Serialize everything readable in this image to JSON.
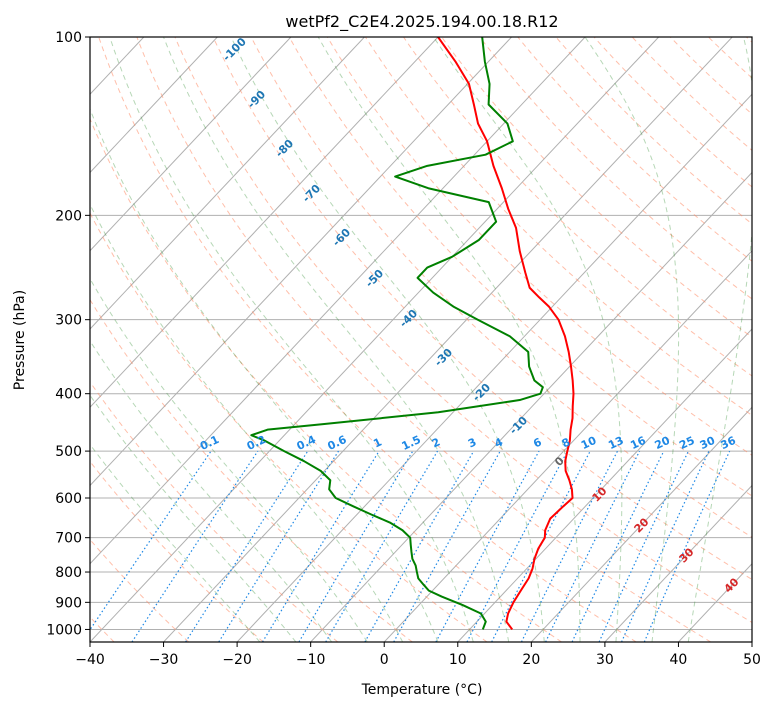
{
  "chart_data": {
    "type": "skew-t",
    "title": "wetPf2_C2E4.2025.194.00.18.R12",
    "xlabel": "Temperature (°C)",
    "ylabel": "Pressure (hPa)",
    "xlim": [
      -40,
      50
    ],
    "ylim": [
      1050,
      100
    ],
    "x_ticks": [
      -40,
      -30,
      -20,
      -10,
      0,
      10,
      20,
      30,
      40,
      50
    ],
    "y_ticks": [
      1000,
      900,
      800,
      700,
      600,
      500,
      400,
      300,
      200,
      100
    ],
    "series": [
      {
        "color": "#ff0000",
        "points": [
          [
            1000,
            15.8
          ],
          [
            970,
            14.0
          ],
          [
            940,
            13.2
          ],
          [
            900,
            12.5
          ],
          [
            860,
            12.0
          ],
          [
            820,
            11.5
          ],
          [
            790,
            10.8
          ],
          [
            760,
            9.8
          ],
          [
            730,
            9.0
          ],
          [
            700,
            8.5
          ],
          [
            680,
            7.6
          ],
          [
            650,
            6.8
          ],
          [
            620,
            7.0
          ],
          [
            600,
            7.2
          ],
          [
            580,
            6.0
          ],
          [
            560,
            4.5
          ],
          [
            540,
            2.8
          ],
          [
            520,
            1.5
          ],
          [
            500,
            0.5
          ],
          [
            480,
            -0.5
          ],
          [
            460,
            -1.8
          ],
          [
            440,
            -3.0
          ],
          [
            420,
            -4.5
          ],
          [
            400,
            -6.0
          ],
          [
            380,
            -7.8
          ],
          [
            360,
            -9.8
          ],
          [
            340,
            -12.0
          ],
          [
            320,
            -14.5
          ],
          [
            300,
            -17.5
          ],
          [
            285,
            -20.5
          ],
          [
            275,
            -23.0
          ],
          [
            265,
            -25.5
          ],
          [
            250,
            -28.0
          ],
          [
            230,
            -31.5
          ],
          [
            210,
            -35.0
          ],
          [
            195,
            -38.5
          ],
          [
            180,
            -42.0
          ],
          [
            165,
            -46.0
          ],
          [
            150,
            -50.0
          ],
          [
            140,
            -53.5
          ],
          [
            130,
            -56.5
          ],
          [
            120,
            -59.8
          ],
          [
            110,
            -64.5
          ],
          [
            100,
            -70.0
          ]
        ]
      },
      {
        "color": "#008000",
        "points": [
          [
            1000,
            11.8
          ],
          [
            970,
            11.2
          ],
          [
            940,
            9.5
          ],
          [
            910,
            6.0
          ],
          [
            880,
            2.0
          ],
          [
            860,
            -0.5
          ],
          [
            840,
            -2.0
          ],
          [
            820,
            -3.5
          ],
          [
            800,
            -4.5
          ],
          [
            780,
            -5.5
          ],
          [
            760,
            -6.8
          ],
          [
            740,
            -7.8
          ],
          [
            720,
            -8.8
          ],
          [
            700,
            -9.8
          ],
          [
            680,
            -11.8
          ],
          [
            660,
            -14.5
          ],
          [
            640,
            -18.0
          ],
          [
            620,
            -21.5
          ],
          [
            600,
            -25.0
          ],
          [
            580,
            -27.0
          ],
          [
            560,
            -28.0
          ],
          [
            540,
            -30.5
          ],
          [
            520,
            -34.0
          ],
          [
            500,
            -38.0
          ],
          [
            480,
            -42.0
          ],
          [
            470,
            -44.5
          ],
          [
            460,
            -43.0
          ],
          [
            450,
            -36.0
          ],
          [
            430,
            -22.0
          ],
          [
            410,
            -12.5
          ],
          [
            400,
            -10.5
          ],
          [
            390,
            -11.0
          ],
          [
            380,
            -13.0
          ],
          [
            360,
            -15.5
          ],
          [
            340,
            -17.5
          ],
          [
            320,
            -22.0
          ],
          [
            300,
            -28.5
          ],
          [
            285,
            -33.5
          ],
          [
            270,
            -38.0
          ],
          [
            255,
            -42.0
          ],
          [
            245,
            -42.0
          ],
          [
            235,
            -40.0
          ],
          [
            220,
            -38.5
          ],
          [
            205,
            -38.5
          ],
          [
            190,
            -42.0
          ],
          [
            180,
            -52.0
          ],
          [
            172,
            -58.0
          ],
          [
            165,
            -55.0
          ],
          [
            158,
            -48.5
          ],
          [
            150,
            -46.5
          ],
          [
            140,
            -49.5
          ],
          [
            130,
            -54.5
          ],
          [
            120,
            -57.0
          ],
          [
            110,
            -60.5
          ],
          [
            100,
            -64.0
          ]
        ]
      }
    ],
    "dry_adiabat_labels": [
      "-100",
      "-90",
      "-80",
      "-70",
      "-60",
      "-50",
      "-40",
      "-30",
      "-20",
      "-10",
      "0",
      "10",
      "20",
      "30",
      "40"
    ],
    "mixing_ratio_labels": [
      "0.1",
      "0.2",
      "0.4",
      "0.6",
      "1",
      "1.5",
      "2",
      "3",
      "4",
      "6",
      "8",
      "10",
      "13",
      "16",
      "20",
      "25",
      "30",
      "36"
    ],
    "grid": true
  }
}
